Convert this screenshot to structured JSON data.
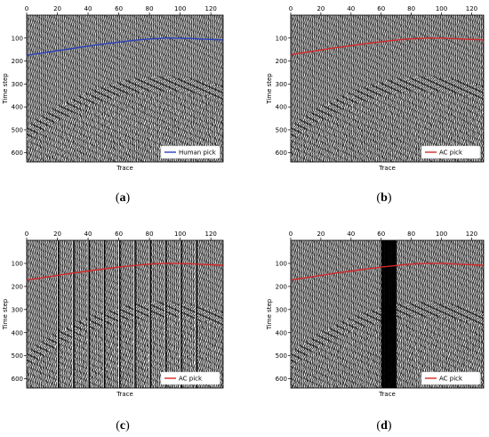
{
  "chart_data": [
    {
      "type": "line",
      "panel_label": "(a)",
      "xlabel": "Trace",
      "ylabel": "Time step",
      "xlim": [
        0,
        128
      ],
      "ylim": [
        640,
        0
      ],
      "x_axis_position": "top",
      "xticks": [
        0,
        20,
        40,
        60,
        80,
        100,
        120
      ],
      "yticks": [
        100,
        200,
        300,
        400,
        500,
        600
      ],
      "background": "seismic wiggle traces",
      "series": [
        {
          "name": "Human pick",
          "color": "#2a3fbf",
          "x": [
            0,
            10,
            20,
            30,
            40,
            50,
            60,
            70,
            80,
            90,
            100,
            110,
            120,
            128
          ],
          "y": [
            175,
            165,
            155,
            145,
            135,
            126,
            118,
            110,
            104,
            100,
            100,
            103,
            106,
            108
          ]
        }
      ],
      "legend_position": "lower right",
      "dead_traces": []
    },
    {
      "type": "line",
      "panel_label": "(b)",
      "xlabel": "Trace",
      "ylabel": "Time step",
      "xlim": [
        0,
        128
      ],
      "ylim": [
        640,
        0
      ],
      "x_axis_position": "top",
      "xticks": [
        0,
        20,
        40,
        60,
        80,
        100,
        120
      ],
      "yticks": [
        100,
        200,
        300,
        400,
        500,
        600
      ],
      "background": "seismic wiggle traces",
      "series": [
        {
          "name": "AC pick",
          "color": "#d62728",
          "x": [
            0,
            10,
            20,
            30,
            40,
            50,
            60,
            70,
            80,
            90,
            100,
            110,
            120,
            128
          ],
          "y": [
            172,
            162,
            152,
            142,
            133,
            124,
            116,
            109,
            103,
            100,
            100,
            103,
            106,
            108
          ]
        }
      ],
      "legend_position": "lower right",
      "dead_traces": []
    },
    {
      "type": "line",
      "panel_label": "(c)",
      "xlabel": "Trace",
      "ylabel": "Time step",
      "xlim": [
        0,
        128
      ],
      "ylim": [
        640,
        0
      ],
      "x_axis_position": "top",
      "xticks": [
        0,
        20,
        40,
        60,
        80,
        100,
        120
      ],
      "yticks": [
        100,
        200,
        300,
        400,
        500,
        600
      ],
      "background": "seismic wiggle traces",
      "series": [
        {
          "name": "AC pick",
          "color": "#d62728",
          "x": [
            0,
            10,
            20,
            30,
            40,
            50,
            60,
            70,
            80,
            90,
            100,
            110,
            120,
            128
          ],
          "y": [
            172,
            162,
            152,
            142,
            133,
            124,
            116,
            109,
            103,
            100,
            100,
            103,
            106,
            108
          ]
        }
      ],
      "legend_position": "lower right",
      "dead_traces": [
        21,
        31,
        41,
        51,
        61,
        71,
        81,
        91,
        101,
        111
      ]
    },
    {
      "type": "line",
      "panel_label": "(d)",
      "xlabel": "Trace",
      "ylabel": "Time step",
      "xlim": [
        0,
        128
      ],
      "ylim": [
        640,
        0
      ],
      "x_axis_position": "top",
      "xticks": [
        0,
        20,
        40,
        60,
        80,
        100,
        120
      ],
      "yticks": [
        100,
        200,
        300,
        400,
        500,
        600
      ],
      "background": "seismic wiggle traces",
      "series": [
        {
          "name": "AC pick",
          "color": "#d62728",
          "x": [
            0,
            10,
            20,
            30,
            40,
            50,
            60,
            70,
            80,
            90,
            100,
            110,
            120,
            128
          ],
          "y": [
            172,
            162,
            152,
            142,
            133,
            124,
            116,
            109,
            103,
            100,
            100,
            103,
            106,
            108
          ]
        }
      ],
      "legend_position": "lower right",
      "dead_traces": [
        61,
        62,
        63,
        64,
        65,
        66,
        67,
        68,
        69,
        70
      ]
    }
  ]
}
